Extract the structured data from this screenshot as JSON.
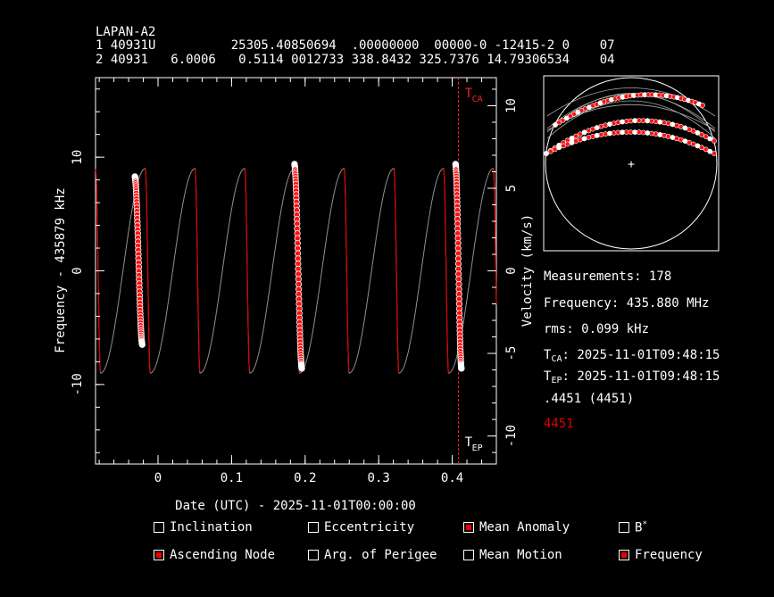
{
  "header": {
    "satellite": "LAPAN-A2",
    "tle_line1": "1 40931U          25305.40850694  .00000000  00000-0 -12415-2 0    07",
    "tle_line2": "2 40931   6.0006   0.5114 0012733 338.8432 325.7376 14.79306534    04"
  },
  "info": {
    "measurements": "Measurements: 178",
    "frequency": "Frequency: 435.880 MHz",
    "rms": "rms: 0.099 kHz",
    "tca_label": "T",
    "tca_sub": "CA",
    "tca_value": ": 2025-11-01T09:48:15",
    "tep_label": "T",
    "tep_sub": "EP",
    "tep_value": ": 2025-11-01T09:48:15",
    "id_line": ".4451 (4451)",
    "id_red": "4451"
  },
  "options": [
    {
      "label": "Inclination",
      "checked": false
    },
    {
      "label": "Eccentricity",
      "checked": false
    },
    {
      "label": "Mean Anomaly",
      "checked": true
    },
    {
      "label": "B",
      "checked": false,
      "sup": "*"
    },
    {
      "label": "Ascending Node",
      "checked": true
    },
    {
      "label": "Arg. of Perigee",
      "checked": false
    },
    {
      "label": "Mean Motion",
      "checked": false
    },
    {
      "label": "Frequency",
      "checked": true
    }
  ],
  "colors": {
    "model": "#e00000",
    "model_gray": "#909090",
    "point_fill": "#ff1010",
    "point_edge": "#ffffff",
    "marker": "#ff2020"
  },
  "chart_data": {
    "type": "scatter",
    "xlabel": "Date (UTC) - 2025-11-01T00:00:00",
    "ylabel": "Frequency - 435879 kHz",
    "y2label": "Velocity (km/s)",
    "xlim": [
      -0.085,
      0.46
    ],
    "ylim": [
      -17,
      17
    ],
    "y2lim": [
      -11.7,
      11.7
    ],
    "xticks": [
      0,
      0.1,
      0.2,
      0.3,
      0.4
    ],
    "xtick_labels": [
      "0",
      "0.1",
      "0.2",
      "0.3",
      "0.4"
    ],
    "yticks": [
      -10,
      0,
      10
    ],
    "ytick_labels": [
      "-10",
      "0",
      "10"
    ],
    "y2ticks": [
      -10,
      -5,
      0,
      5,
      10
    ],
    "y2tick_labels": [
      "-10",
      "-5",
      "0",
      "5",
      "10"
    ],
    "tca_x": 0.4085,
    "tca_label": "CA",
    "tep_label": "EP",
    "passes": [
      {
        "x_start": -0.0315,
        "x_end": -0.0215,
        "y_start": 8.3,
        "y_end": -6.5
      },
      {
        "x_start": 0.1855,
        "x_end": 0.1955,
        "y_start": 9.4,
        "y_end": -8.6
      },
      {
        "x_start": 0.4045,
        "x_end": 0.4125,
        "y_start": 9.4,
        "y_end": -8.6
      }
    ],
    "model": {
      "period": 0.0676,
      "amplitude": 9.0,
      "peak_x": 0.1855
    }
  }
}
